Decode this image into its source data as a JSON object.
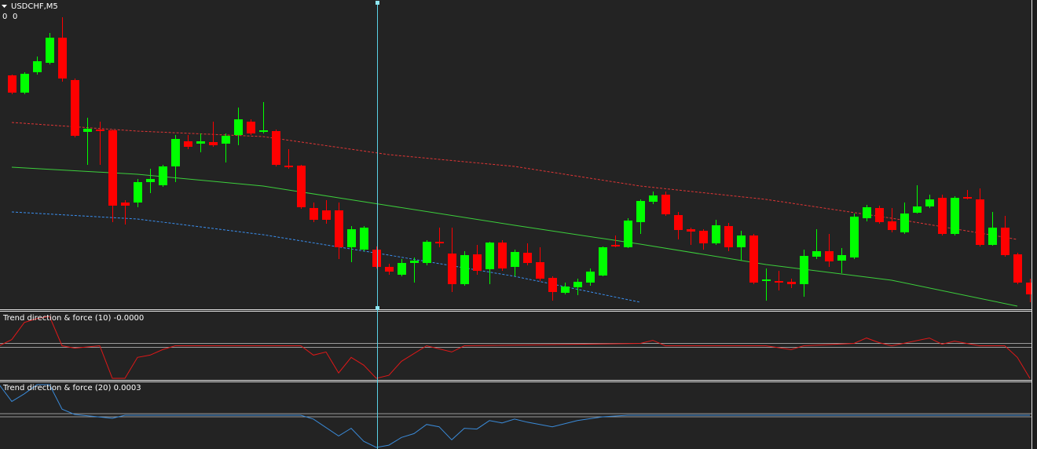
{
  "chart_data": [
    {
      "type": "candlestick",
      "title": "USDCHF,M5",
      "readout": [
        0,
        0
      ],
      "up_color": "#00ff00",
      "down_color": "#ff0000",
      "ylim": [
        0,
        390
      ],
      "open": [
        297,
        275,
        301,
        313,
        345,
        291,
        225,
        228,
        227,
        135,
        135,
        161,
        157,
        181,
        213,
        210,
        212,
        210,
        221,
        238,
        225,
        226,
        182,
        182,
        128,
        125,
        125,
        78,
        75,
        75,
        53,
        43,
        58,
        58,
        85,
        70,
        31,
        69,
        50,
        84,
        53,
        71,
        59,
        39,
        20,
        27,
        33,
        42,
        81,
        78,
        110,
        136,
        145,
        119,
        101,
        99,
        83,
        105,
        78,
        93,
        35,
        35,
        34,
        31,
        66,
        73,
        61,
        65,
        115,
        128,
        111,
        97,
        122,
        130,
        141,
        95,
        142,
        139,
        81,
        103,
        69,
        33
      ],
      "high": [
        298,
        301,
        321,
        351,
        371,
        293,
        243,
        238,
        228,
        138,
        165,
        178,
        183,
        221,
        221,
        223,
        238,
        223,
        256,
        241,
        263,
        228,
        203,
        183,
        135,
        138,
        135,
        105,
        105,
        79,
        57,
        63,
        65,
        87,
        103,
        103,
        73,
        81,
        85,
        87,
        75,
        83,
        78,
        41,
        33,
        38,
        51,
        79,
        93,
        115,
        139,
        149,
        149,
        123,
        103,
        101,
        113,
        109,
        99,
        95,
        51,
        48,
        38,
        75,
        101,
        95,
        77,
        121,
        132,
        131,
        128,
        135,
        157,
        145,
        145,
        143,
        151,
        153,
        123,
        118,
        71,
        38
      ],
      "low": [
        273,
        273,
        298,
        311,
        289,
        218,
        183,
        183,
        110,
        107,
        129,
        147,
        155,
        161,
        203,
        199,
        206,
        186,
        208,
        221,
        223,
        181,
        178,
        127,
        110,
        108,
        63,
        59,
        73,
        51,
        43,
        41,
        33,
        55,
        78,
        21,
        29,
        43,
        31,
        48,
        41,
        55,
        35,
        10,
        18,
        17,
        29,
        41,
        78,
        77,
        95,
        133,
        118,
        88,
        81,
        75,
        81,
        73,
        61,
        31,
        10,
        23,
        26,
        15,
        63,
        53,
        45,
        63,
        111,
        108,
        97,
        95,
        121,
        128,
        93,
        93,
        139,
        79,
        80,
        66,
        31,
        8
      ],
      "close": [
        275,
        299,
        315,
        345,
        293,
        220,
        229,
        226,
        131,
        131,
        161,
        165,
        181,
        216,
        206,
        213,
        208,
        220,
        241,
        223,
        227,
        183,
        180,
        129,
        113,
        113,
        78,
        101,
        103,
        53,
        47,
        58,
        61,
        85,
        83,
        31,
        68,
        48,
        84,
        51,
        72,
        58,
        38,
        21,
        28,
        34,
        47,
        78,
        79,
        112,
        137,
        144,
        120,
        100,
        98,
        83,
        106,
        78,
        93,
        33,
        37,
        33,
        31,
        67,
        73,
        60,
        68,
        117,
        129,
        110,
        100,
        121,
        130,
        139,
        95,
        141,
        140,
        81,
        103,
        68,
        33,
        18
      ],
      "lines": [
        {
          "color": "#e03535",
          "dashed": true,
          "x": [
            1,
            11,
            21,
            31,
            41,
            51,
            61,
            71,
            81
          ],
          "values": [
            237,
            226,
            219,
            196,
            181,
            156,
            139,
            115,
            88
          ]
        },
        {
          "color": "#3ccf3c",
          "dashed": false,
          "x": [
            1,
            11,
            21,
            31,
            41,
            51,
            61,
            71,
            81
          ],
          "values": [
            180,
            171,
            156,
            131,
            106,
            82,
            56,
            36,
            3
          ]
        },
        {
          "color": "#3a8ff0",
          "dashed": true,
          "x": [
            1,
            11,
            21,
            31,
            41,
            51
          ],
          "values": [
            123,
            114,
            94,
            68,
            41,
            8
          ]
        }
      ]
    },
    {
      "type": "line",
      "title": "Trend direction & force (10) -0.0000",
      "ylim": [
        -43,
        43
      ],
      "levels": [
        3,
        -2
      ],
      "level_color": "#9a9a9a",
      "series": [
        {
          "color": "#e01818",
          "x": [
            0,
            1,
            2,
            3,
            4,
            5,
            6,
            8,
            9,
            10,
            11,
            12,
            13,
            14,
            24,
            25,
            26,
            27,
            28,
            29,
            30,
            31,
            32,
            34,
            36,
            37,
            51,
            52,
            53,
            61,
            63,
            64,
            68,
            69,
            70,
            71,
            74,
            75,
            76,
            78,
            80,
            81,
            82
          ],
          "values": [
            0,
            8,
            30,
            35,
            38,
            0,
            -3,
            0,
            -42,
            -42,
            -15,
            -12,
            -5,
            0,
            0,
            -12,
            -8,
            -35,
            -15,
            -25,
            -42,
            -38,
            -20,
            0,
            -8,
            0,
            3,
            7,
            0,
            0,
            -5,
            0,
            3,
            10,
            4,
            0,
            10,
            2,
            6,
            0,
            0,
            -15,
            -42
          ]
        }
      ]
    },
    {
      "type": "line",
      "title": "Trend direction & force (20) 0.0003",
      "ylim": [
        -43,
        42
      ],
      "levels": [
        2,
        -2
      ],
      "level_color": "#9a9a9a",
      "series": [
        {
          "color": "#3a8ad8",
          "x": [
            0,
            1,
            2,
            3,
            4,
            5,
            6,
            9,
            10,
            24,
            25,
            27,
            28,
            29,
            30,
            31,
            32,
            33,
            34,
            35,
            36,
            37,
            38,
            39,
            40,
            41,
            42,
            44,
            46,
            48,
            50,
            82
          ],
          "values": [
            40,
            18,
            28,
            40,
            40,
            8,
            1,
            -4,
            0,
            0,
            -5,
            -27,
            -17,
            -34,
            -42,
            -39,
            -29,
            -24,
            -12,
            -15,
            -32,
            -17,
            -18,
            -7,
            -10,
            -5,
            -9,
            -15,
            -7,
            -2,
            0,
            0
          ]
        }
      ]
    }
  ]
}
